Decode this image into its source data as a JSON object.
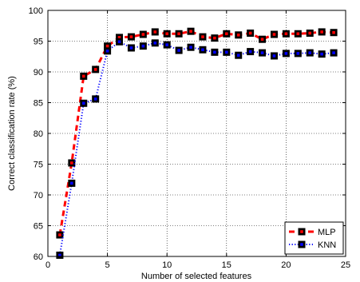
{
  "chart_data": {
    "type": "line",
    "title": "",
    "xlabel": "Number of selected features",
    "ylabel": "Correct classification rate (%)",
    "xlim": [
      0,
      25
    ],
    "ylim": [
      60,
      100
    ],
    "xticks": [
      0,
      5,
      10,
      15,
      20,
      25
    ],
    "yticks": [
      60,
      65,
      70,
      75,
      80,
      85,
      90,
      95,
      100
    ],
    "grid": true,
    "legend_position": "bottom-right",
    "x": [
      1,
      2,
      3,
      4,
      5,
      6,
      7,
      8,
      9,
      10,
      11,
      12,
      13,
      14,
      15,
      16,
      17,
      18,
      19,
      20,
      21,
      22,
      23,
      24
    ],
    "series": [
      {
        "name": "MLP",
        "color": "#ff0000",
        "style": "dashed",
        "values": [
          63.5,
          75.2,
          89.3,
          90.4,
          94.2,
          95.6,
          95.7,
          96.1,
          96.5,
          96.2,
          96.2,
          96.6,
          95.7,
          95.5,
          96.2,
          96.0,
          96.3,
          95.3,
          96.1,
          96.2,
          96.2,
          96.3,
          96.5,
          96.4
        ]
      },
      {
        "name": "KNN",
        "color": "#0000ff",
        "style": "dotted",
        "values": [
          60.2,
          71.9,
          84.9,
          85.6,
          93.4,
          94.9,
          93.9,
          94.2,
          94.7,
          94.4,
          93.5,
          94.0,
          93.6,
          93.2,
          93.2,
          92.7,
          93.3,
          93.1,
          92.6,
          93.0,
          93.0,
          93.1,
          92.9,
          93.1
        ]
      }
    ]
  }
}
